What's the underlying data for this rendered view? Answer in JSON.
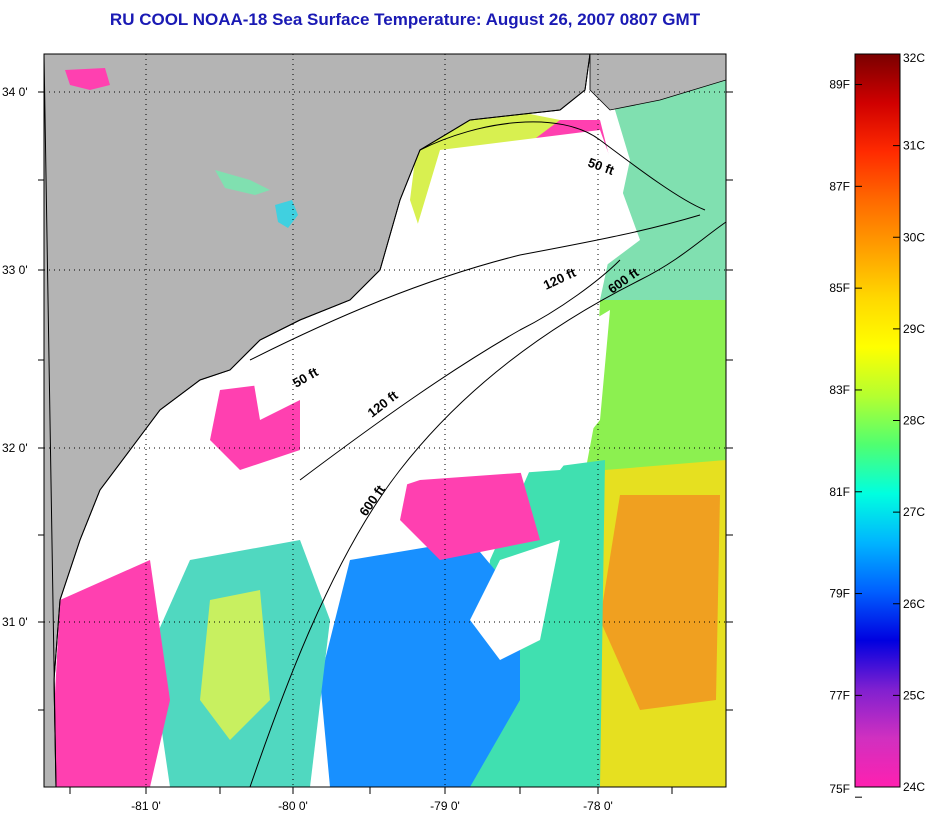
{
  "title": "RU COOL  NOAA-18  Sea Surface Temperature:  August 26, 2007 0807 GMT",
  "map": {
    "lon_ticks": [
      "-81 0'",
      "-80 0'",
      "-79 0'",
      "-78 0'"
    ],
    "lat_ticks": [
      "34 0'",
      "33 0'",
      "32 0'",
      "31 0'"
    ],
    "contour_labels": [
      "50 ft",
      "120 ft",
      "600 ft",
      "50 ft",
      "120 ft",
      "600 ft"
    ],
    "colors": {
      "land": "#b4b4b4",
      "cloud": "#ffffff",
      "coastline": "#000000"
    }
  },
  "colorbar": {
    "celsius_labels": [
      "32C",
      "31C",
      "30C",
      "29C",
      "28C",
      "27C",
      "26C",
      "25C",
      "24C"
    ],
    "fahrenheit_labels": [
      "89F",
      "87F",
      "85F",
      "83F",
      "81F",
      "79F",
      "77F",
      "75F"
    ],
    "gradient": [
      "#7a0000",
      "#d00000",
      "#ff2a00",
      "#ff6a00",
      "#ffa000",
      "#ffd800",
      "#ffff00",
      "#b4ff30",
      "#50ff70",
      "#00ffe0",
      "#00b4ff",
      "#0060ff",
      "#0000e0",
      "#8020d0",
      "#d030c0",
      "#ff20b0"
    ]
  }
}
